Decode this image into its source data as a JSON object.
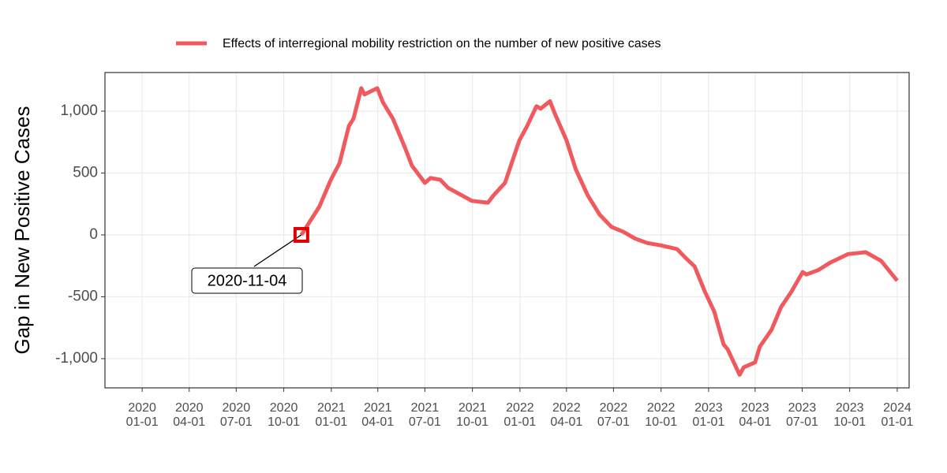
{
  "chart_data": {
    "type": "line",
    "y_label": "Gap in New Positive Cases",
    "x": [
      "2020-11-04",
      "2020-12-09",
      "2020-12-31",
      "2021-01-17",
      "2021-02-04",
      "2021-02-13",
      "2021-02-28",
      "2021-03-06",
      "2021-03-31",
      "2021-04-11",
      "2021-04-30",
      "2021-05-22",
      "2021-06-06",
      "2021-07-01",
      "2021-07-12",
      "2021-07-31",
      "2021-08-15",
      "2021-09-30",
      "2021-10-31",
      "2021-11-11",
      "2021-12-03",
      "2021-12-31",
      "2022-01-15",
      "2022-02-02",
      "2022-02-10",
      "2022-02-28",
      "2022-03-10",
      "2022-04-01",
      "2022-04-19",
      "2022-05-12",
      "2022-06-04",
      "2022-06-27",
      "2022-07-20",
      "2022-08-12",
      "2022-09-04",
      "2022-10-01",
      "2022-11-01",
      "2022-11-16",
      "2022-12-05",
      "2022-12-25",
      "2023-01-12",
      "2023-01-30",
      "2023-02-07",
      "2023-03-02",
      "2023-03-10",
      "2023-04-01",
      "2023-04-10",
      "2023-05-03",
      "2023-05-21",
      "2023-06-10",
      "2023-07-02",
      "2023-07-09",
      "2023-08-01",
      "2023-08-24",
      "2023-09-28",
      "2023-10-21",
      "2023-11-01",
      "2023-12-01",
      "2024-01-01"
    ],
    "series": [
      {
        "name": "Effects of interregional mobility restriction on the number of new positive cases",
        "color": "#f05a5f",
        "values": [
          0,
          230,
          445,
          580,
          880,
          940,
          1185,
          1135,
          1185,
          1070,
          940,
          720,
          560,
          420,
          460,
          445,
          380,
          275,
          260,
          320,
          420,
          765,
          880,
          1040,
          1020,
          1080,
          975,
          765,
          530,
          320,
          165,
          65,
          25,
          -30,
          -65,
          -85,
          -115,
          -180,
          -255,
          -460,
          -620,
          -885,
          -925,
          -1130,
          -1070,
          -1030,
          -905,
          -765,
          -585,
          -460,
          -300,
          -320,
          -285,
          -225,
          -155,
          -145,
          -140,
          -210,
          -370
        ]
      }
    ],
    "xlim": [
      "2019-10-21",
      "2024-01-24"
    ],
    "xticks": [
      {
        "value": "2020-01-01",
        "label": "2020\n01-01"
      },
      {
        "value": "2020-04-01",
        "label": "2020\n04-01"
      },
      {
        "value": "2020-07-01",
        "label": "2020\n07-01"
      },
      {
        "value": "2020-10-01",
        "label": "2020\n10-01"
      },
      {
        "value": "2021-01-01",
        "label": "2021\n01-01"
      },
      {
        "value": "2021-04-01",
        "label": "2021\n04-01"
      },
      {
        "value": "2021-07-01",
        "label": "2021\n07-01"
      },
      {
        "value": "2021-10-01",
        "label": "2021\n10-01"
      },
      {
        "value": "2022-01-01",
        "label": "2022\n01-01"
      },
      {
        "value": "2022-04-01",
        "label": "2022\n04-01"
      },
      {
        "value": "2022-07-01",
        "label": "2022\n07-01"
      },
      {
        "value": "2022-10-01",
        "label": "2022\n10-01"
      },
      {
        "value": "2023-01-01",
        "label": "2023\n01-01"
      },
      {
        "value": "2023-04-01",
        "label": "2023\n04-01"
      },
      {
        "value": "2023-07-01",
        "label": "2023\n07-01"
      },
      {
        "value": "2023-10-01",
        "label": "2023\n10-01"
      },
      {
        "value": "2024-01-01",
        "label": "2024\n01-01"
      }
    ],
    "ylim": [
      -1236,
      1312
    ],
    "yticks": [
      {
        "value": -1000,
        "label": "-1,000"
      },
      -500,
      0,
      500,
      {
        "value": 1000,
        "label": "1,000"
      }
    ],
    "grid": true,
    "legend": "top",
    "annotation": {
      "text": "2020-11-04",
      "x": "2020-11-04",
      "y": 0
    }
  }
}
